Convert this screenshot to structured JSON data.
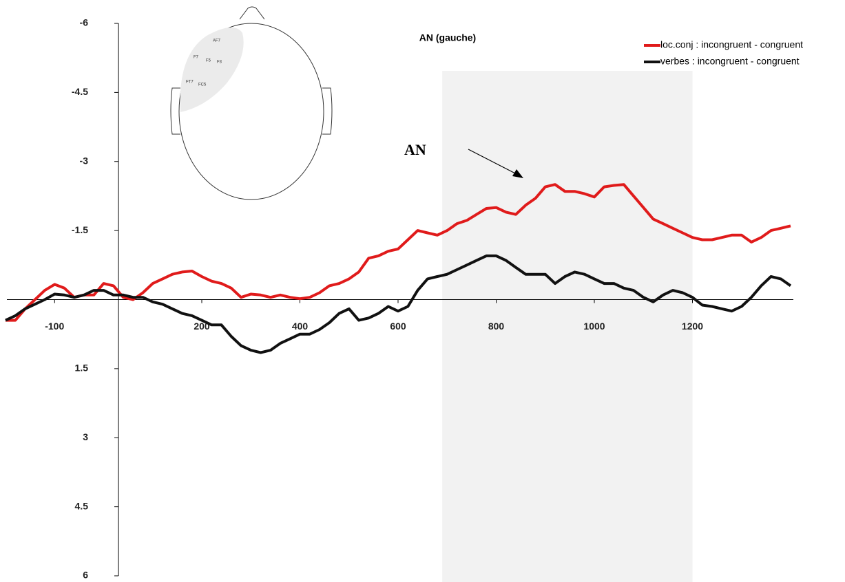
{
  "chart_data": {
    "type": "line",
    "title": "AN (gauche)",
    "annotation": "AN",
    "head_electrodes": [
      "AF7",
      "F7",
      "F5",
      "F3",
      "FT7",
      "FC5"
    ],
    "xlim": [
      -200,
      1400
    ],
    "ylim": [
      6,
      -6
    ],
    "xticks": [
      -100,
      200,
      400,
      600,
      800,
      1000,
      1200
    ],
    "yticks": [
      -6,
      -4.5,
      -3,
      -1.5,
      1.5,
      3,
      4.5,
      6
    ],
    "shaded_region": [
      690,
      1200
    ],
    "legend": "upper right",
    "x": [
      -200,
      -180,
      -160,
      -140,
      -120,
      -100,
      -80,
      -60,
      -40,
      -20,
      0,
      20,
      40,
      60,
      80,
      100,
      120,
      140,
      160,
      180,
      200,
      220,
      240,
      260,
      280,
      300,
      320,
      340,
      360,
      380,
      400,
      420,
      440,
      460,
      480,
      500,
      520,
      540,
      560,
      580,
      600,
      620,
      640,
      660,
      680,
      700,
      720,
      740,
      760,
      780,
      800,
      820,
      840,
      860,
      880,
      900,
      920,
      940,
      960,
      980,
      1000,
      1020,
      1040,
      1060,
      1080,
      1100,
      1120,
      1140,
      1160,
      1180,
      1200,
      1220,
      1240,
      1260,
      1280,
      1300,
      1320,
      1340,
      1360,
      1380,
      1400
    ],
    "series": [
      {
        "name": "loc.conj : incongruent - congruent",
        "color": "#e01b1b",
        "values": [
          0.45,
          0.45,
          0.2,
          0.0,
          -0.2,
          -0.33,
          -0.25,
          -0.05,
          -0.1,
          -0.1,
          -0.35,
          -0.3,
          -0.05,
          0.0,
          -0.15,
          -0.35,
          -0.45,
          -0.55,
          -0.6,
          -0.62,
          -0.5,
          -0.4,
          -0.35,
          -0.25,
          -0.05,
          -0.12,
          -0.1,
          -0.05,
          -0.1,
          -0.05,
          -0.02,
          -0.05,
          -0.15,
          -0.3,
          -0.35,
          -0.45,
          -0.6,
          -0.9,
          -0.95,
          -1.05,
          -1.1,
          -1.3,
          -1.5,
          -1.45,
          -1.4,
          -1.5,
          -1.65,
          -1.72,
          -1.85,
          -1.98,
          -2.0,
          -1.9,
          -1.85,
          -2.05,
          -2.2,
          -2.45,
          -2.5,
          -2.35,
          -2.35,
          -2.3,
          -2.23,
          -2.45,
          -2.48,
          -2.5,
          -2.25,
          -2.0,
          -1.75,
          -1.65,
          -1.55,
          -1.45,
          -1.35,
          -1.3,
          -1.3,
          -1.35,
          -1.4,
          -1.4,
          -1.25,
          -1.35,
          -1.5,
          -1.55,
          -1.6
        ]
      },
      {
        "name": "verbes : incongruent - congruent",
        "color": "#111111",
        "values": [
          0.45,
          0.35,
          0.2,
          0.1,
          0.0,
          -0.12,
          -0.1,
          -0.05,
          -0.1,
          -0.2,
          -0.2,
          -0.1,
          -0.1,
          -0.05,
          -0.05,
          0.05,
          0.1,
          0.2,
          0.3,
          0.35,
          0.45,
          0.55,
          0.55,
          0.8,
          1.0,
          1.1,
          1.15,
          1.1,
          0.95,
          0.85,
          0.75,
          0.75,
          0.65,
          0.5,
          0.3,
          0.2,
          0.45,
          0.4,
          0.3,
          0.15,
          0.25,
          0.15,
          -0.2,
          -0.45,
          -0.5,
          -0.55,
          -0.65,
          -0.75,
          -0.85,
          -0.95,
          -0.95,
          -0.85,
          -0.7,
          -0.55,
          -0.55,
          -0.55,
          -0.35,
          -0.5,
          -0.6,
          -0.55,
          -0.45,
          -0.35,
          -0.35,
          -0.25,
          -0.2,
          -0.05,
          0.05,
          -0.1,
          -0.2,
          -0.15,
          -0.05,
          0.12,
          0.15,
          0.2,
          0.25,
          0.15,
          -0.05,
          -0.3,
          -0.5,
          -0.45,
          -0.3
        ]
      }
    ]
  }
}
